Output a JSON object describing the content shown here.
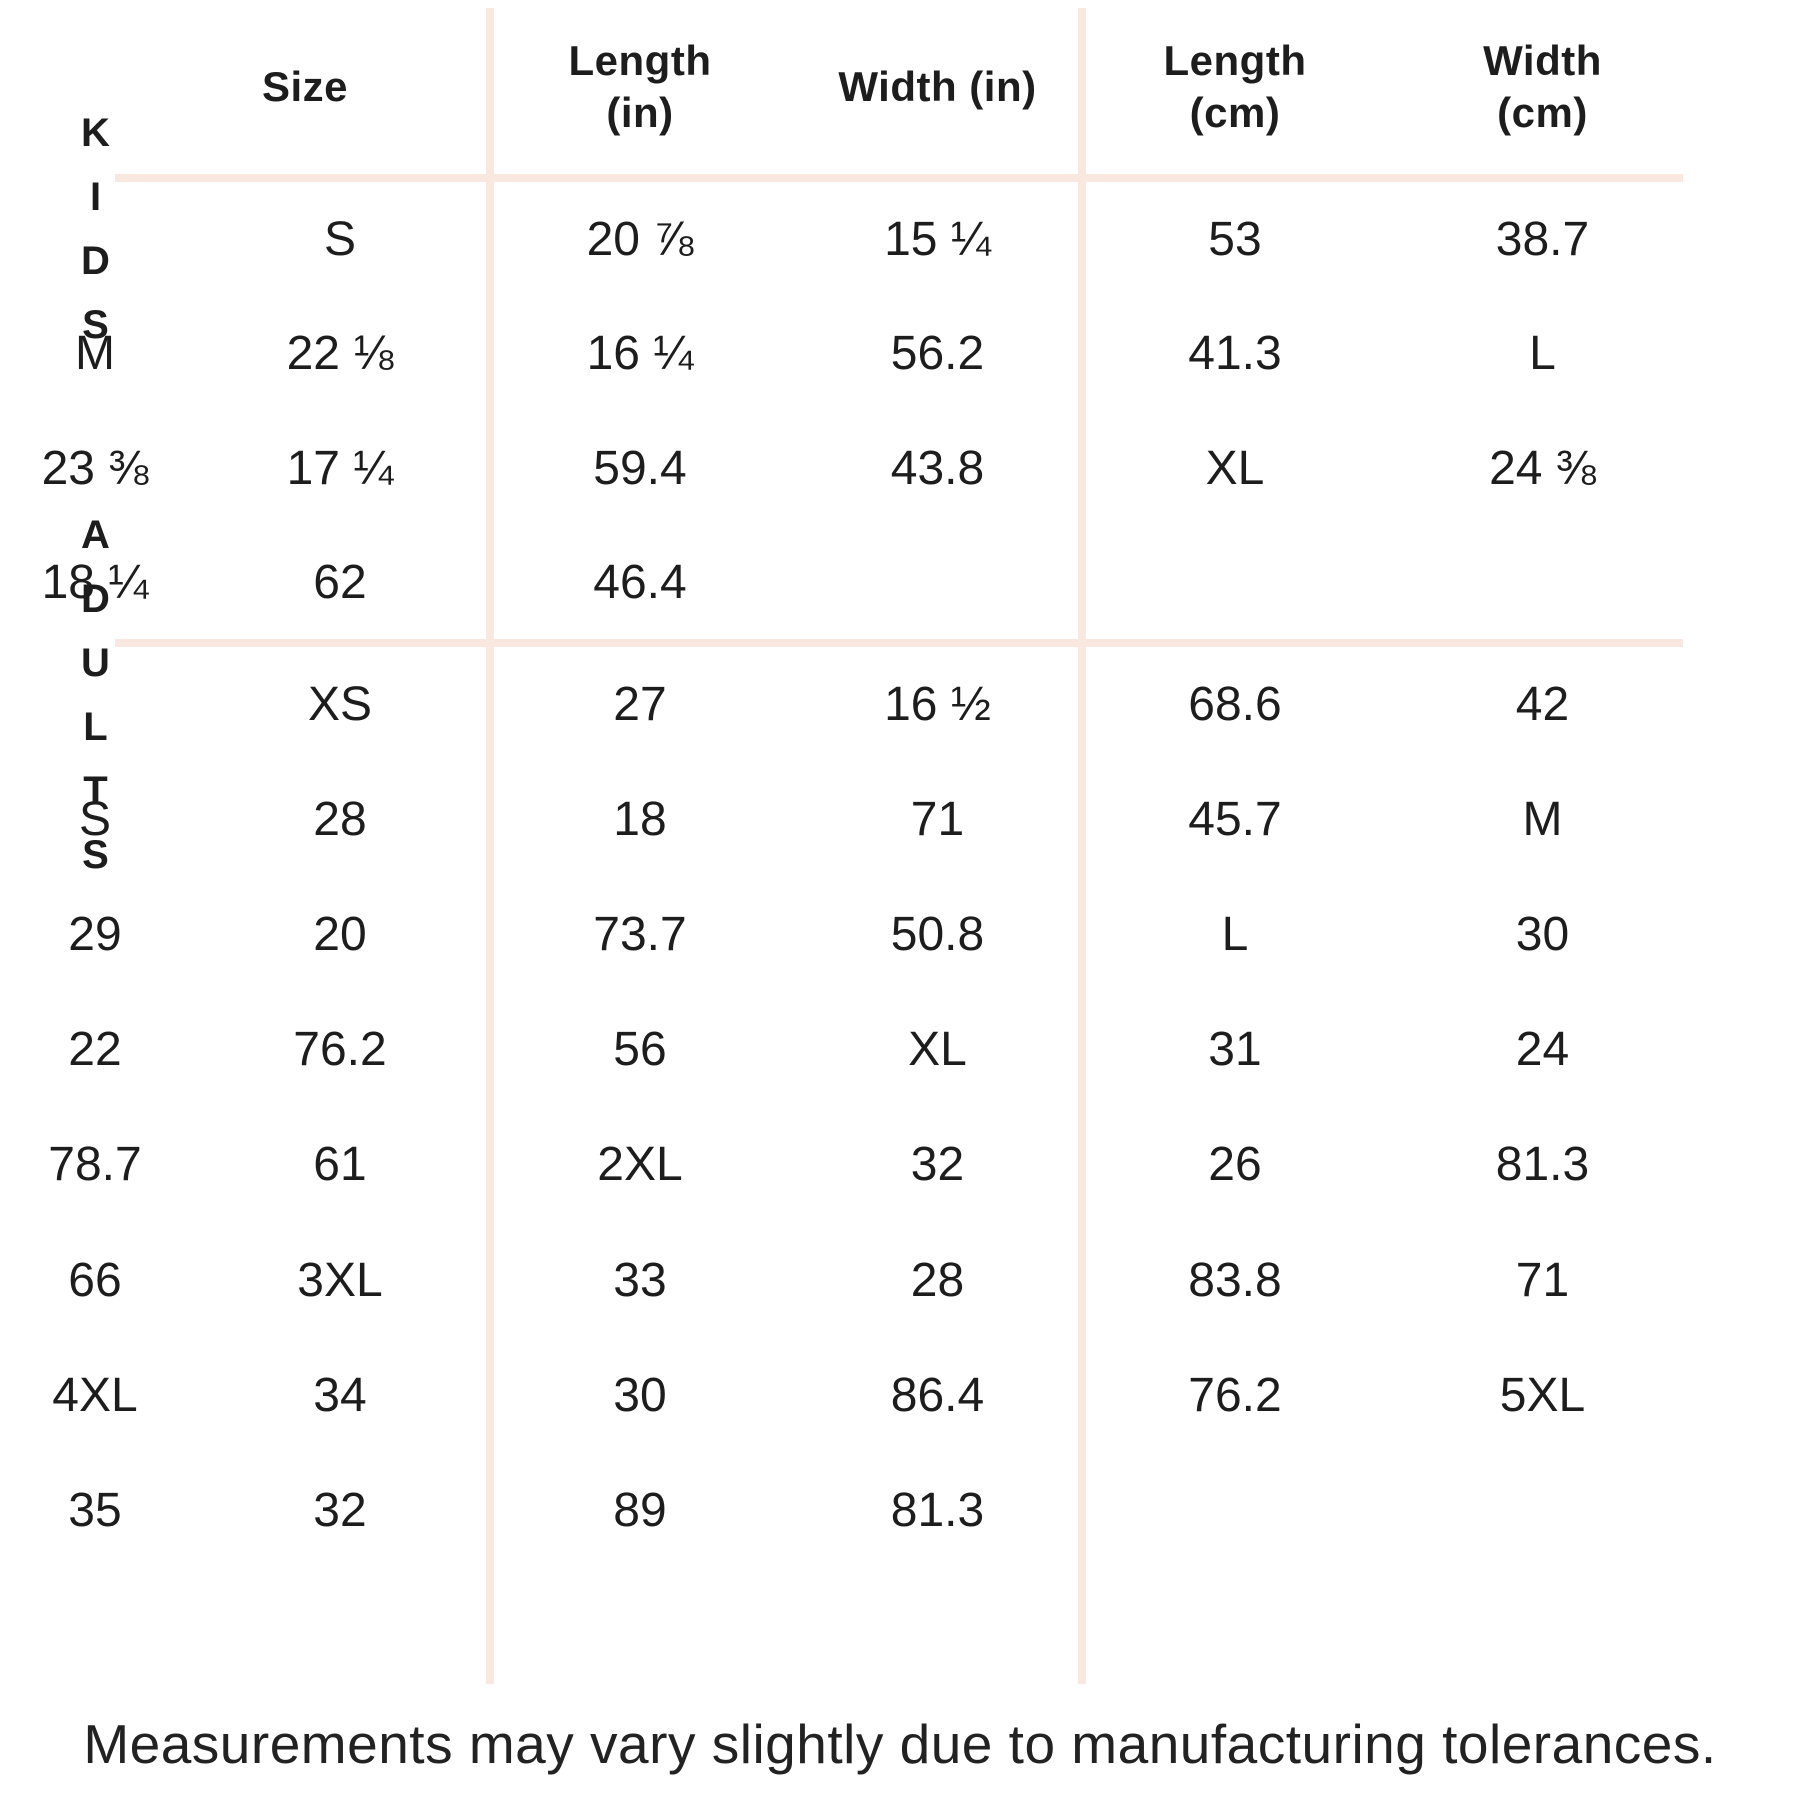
{
  "page": {
    "background": "#ffffff",
    "divider_color": "#f9e8e0",
    "text_color": "#1d1d1d"
  },
  "table": {
    "headers": [
      {
        "line1": "Size",
        "line2": ""
      },
      {
        "line1": "Length",
        "line2": "(in)"
      },
      {
        "line1": "Width (in)",
        "line2": ""
      },
      {
        "line1": "Length",
        "line2": "(cm)"
      },
      {
        "line1": "Width",
        "line2": "(cm)"
      }
    ],
    "sections": [
      {
        "label": "KIDS",
        "rows": [
          {
            "size": "S",
            "length_in": "20 ⅞",
            "width_in": "15 ¼",
            "length_cm": "53",
            "width_cm": "38.7"
          },
          {
            "size": "M",
            "length_in": "22 ⅛",
            "width_in": "16 ¼",
            "length_cm": "56.2",
            "width_cm": "41.3"
          },
          {
            "size": "L",
            "length_in": "23 ⅜",
            "width_in": "17 ¼",
            "length_cm": "59.4",
            "width_cm": "43.8"
          },
          {
            "size": "XL",
            "length_in": "24 ⅜",
            "width_in": "18 ¼",
            "length_cm": "62",
            "width_cm": "46.4"
          }
        ]
      },
      {
        "label": "ADULTS",
        "rows": [
          {
            "size": "XS",
            "length_in": "27",
            "width_in": "16 ½",
            "length_cm": "68.6",
            "width_cm": "42"
          },
          {
            "size": "S",
            "length_in": "28",
            "width_in": "18",
            "length_cm": "71",
            "width_cm": "45.7"
          },
          {
            "size": "M",
            "length_in": "29",
            "width_in": "20",
            "length_cm": "73.7",
            "width_cm": "50.8"
          },
          {
            "size": "L",
            "length_in": "30",
            "width_in": "22",
            "length_cm": "76.2",
            "width_cm": "56"
          },
          {
            "size": "XL",
            "length_in": "31",
            "width_in": "24",
            "length_cm": "78.7",
            "width_cm": "61"
          },
          {
            "size": "2XL",
            "length_in": "32",
            "width_in": "26",
            "length_cm": "81.3",
            "width_cm": "66"
          },
          {
            "size": "3XL",
            "length_in": "33",
            "width_in": "28",
            "length_cm": "83.8",
            "width_cm": "71"
          },
          {
            "size": "4XL",
            "length_in": "34",
            "width_in": "30",
            "length_cm": "86.4",
            "width_cm": "76.2"
          },
          {
            "size": "5XL",
            "length_in": "35",
            "width_in": "32",
            "length_cm": "89",
            "width_cm": "81.3"
          }
        ]
      }
    ]
  },
  "footer": {
    "note": "Measurements may vary slightly due to manufacturing tolerances."
  }
}
